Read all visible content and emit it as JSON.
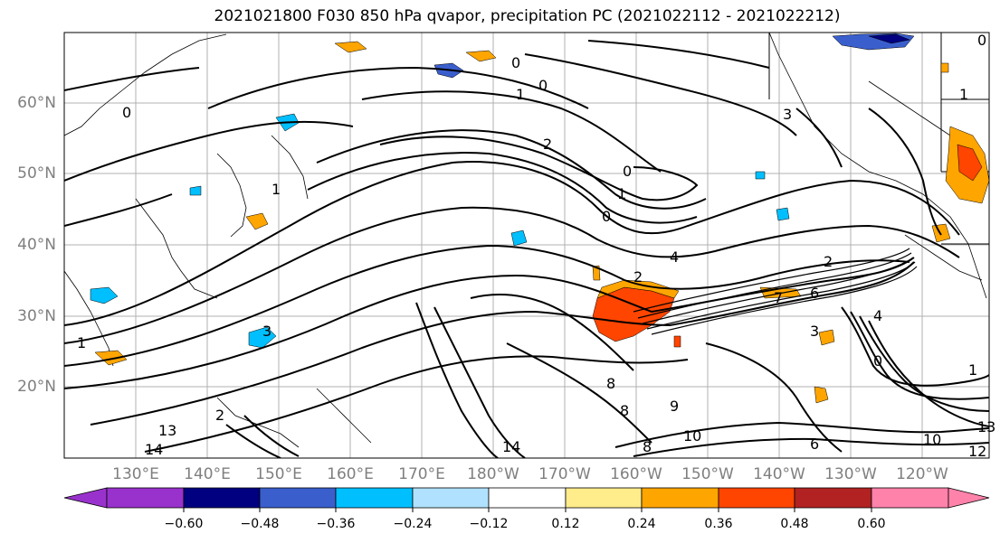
{
  "title": "2021021800 F030 850 hPa qvapor, precipitation PC (2021022112 - 2021022212)",
  "latitude_labels": [
    "60°N",
    "50°N",
    "40°N",
    "30°N",
    "20°N"
  ],
  "longitude_labels": [
    "130°E",
    "140°E",
    "150°E",
    "160°E",
    "170°E",
    "180°W",
    "170°W",
    "160°W",
    "150°W",
    "140°W",
    "130°W",
    "120°W"
  ],
  "colorbar": {
    "ticks": [
      "−0.60",
      "−0.48",
      "−0.36",
      "−0.24",
      "−0.12",
      "0.12",
      "0.24",
      "0.36",
      "0.48",
      "0.60"
    ],
    "colors": [
      "#9932cc",
      "#000080",
      "#3a5fcd",
      "#00bfff",
      "#b0e2ff",
      "#ffffff",
      "#ffec8b",
      "#ffa500",
      "#ff4500",
      "#b22222",
      "#ff82ab"
    ]
  },
  "contour_labels": [
    "0",
    "1",
    "2",
    "3",
    "4",
    "6",
    "7",
    "8",
    "9",
    "10",
    "12",
    "13",
    "14"
  ]
}
